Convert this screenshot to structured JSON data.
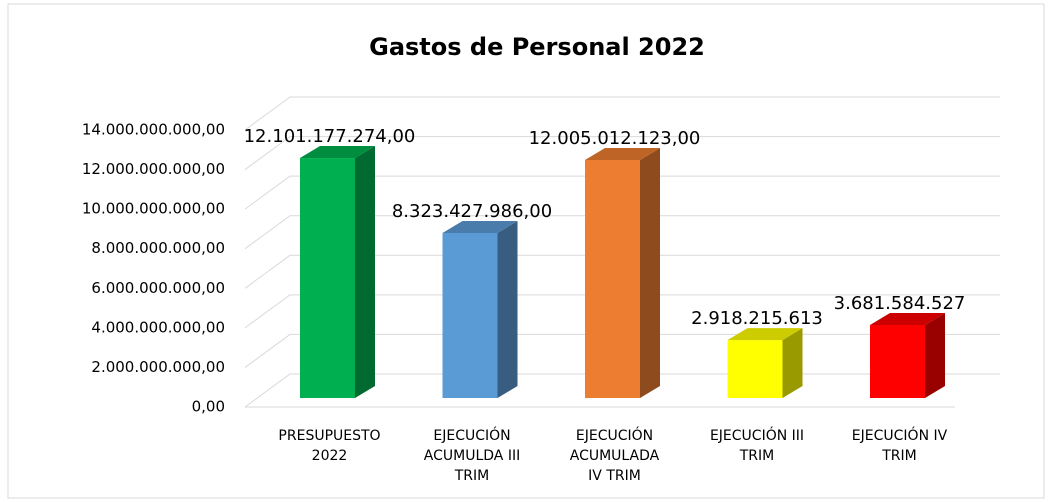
{
  "chart_data": {
    "type": "bar3d",
    "title": "Gastos de Personal 2022",
    "categories": [
      [
        "PRESUPUESTO",
        "2022"
      ],
      [
        "EJECUCIÓN",
        "ACUMULDA III",
        "TRIM"
      ],
      [
        "EJECUCIÓN",
        "ACUMULADA",
        "IV TRIM"
      ],
      [
        "EJECUCIÓN III",
        "TRIM"
      ],
      [
        "EJECUCIÓN IV",
        "TRIM"
      ]
    ],
    "values": [
      12101177274,
      8323427986,
      12005012123,
      2918215613,
      3681584527
    ],
    "value_labels": [
      "12.101.177.274,00",
      "8.323.427.986,00",
      "12.005.012.123,00",
      "2.918.215.613",
      "3.681.584.527"
    ],
    "colors": [
      "#00b050",
      "#5b9bd5",
      "#ed7d31",
      "#ffff00",
      "#ff0000"
    ],
    "ylim": [
      0,
      14000000000
    ],
    "yticks": [
      {
        "value": 0,
        "label": "0,00"
      },
      {
        "value": 2000000000,
        "label": "2.000.000.000,00"
      },
      {
        "value": 4000000000,
        "label": "4.000.000.000,00"
      },
      {
        "value": 6000000000,
        "label": "6.000.000.000,00"
      },
      {
        "value": 8000000000,
        "label": "8.000.000.000,00"
      },
      {
        "value": 10000000000,
        "label": "10.000.000.000,00"
      },
      {
        "value": 12000000000,
        "label": "12.000.000.000,00"
      },
      {
        "value": 14000000000,
        "label": "14.000.000.000,00"
      }
    ],
    "grid": true
  }
}
